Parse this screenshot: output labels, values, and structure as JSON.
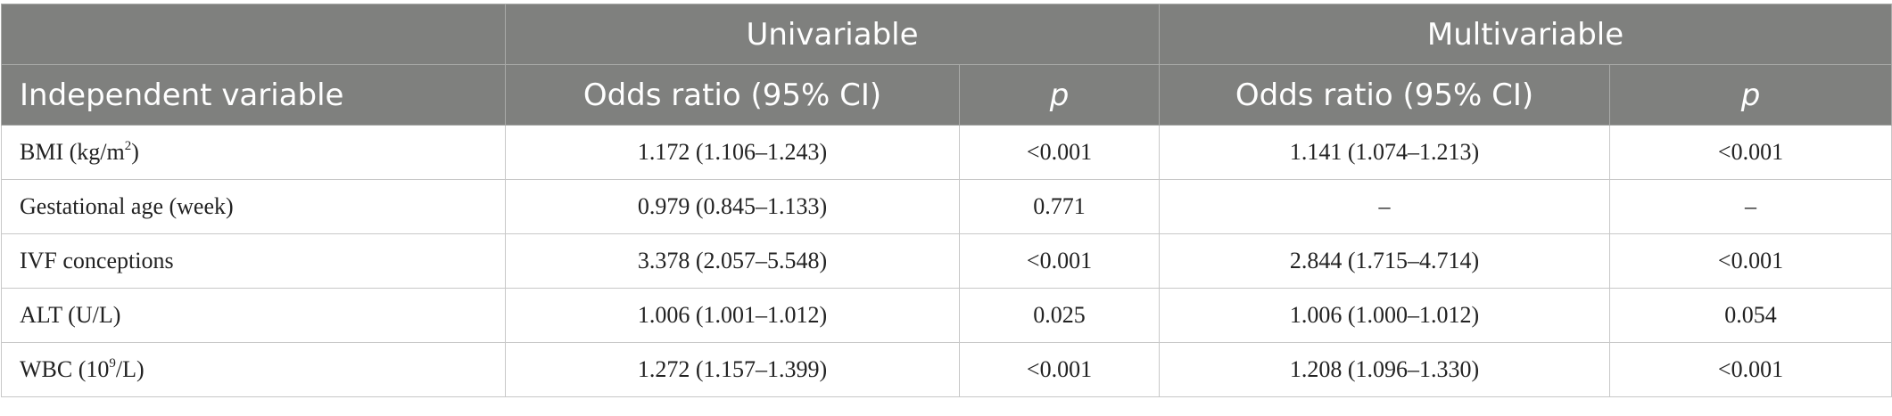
{
  "table": {
    "group_headers": {
      "univariable": "Univariable",
      "multivariable": "Multivariable"
    },
    "column_headers": {
      "variable": "Independent variable",
      "uni_or": "Odds ratio (95% CI)",
      "uni_p": "p",
      "multi_or": "Odds ratio (95% CI)",
      "multi_p": "p"
    },
    "rows": [
      {
        "var_base": "BMI (kg/m",
        "var_sup": "2",
        "var_tail": ")",
        "uni_or": "1.172 (1.106–1.243)",
        "uni_p": "<0.001",
        "multi_or": "1.141 (1.074–1.213)",
        "multi_p": "<0.001"
      },
      {
        "var_base": "Gestational age (week)",
        "var_sup": "",
        "var_tail": "",
        "uni_or": "0.979 (0.845–1.133)",
        "uni_p": "0.771",
        "multi_or": "–",
        "multi_p": "–"
      },
      {
        "var_base": "IVF conceptions",
        "var_sup": "",
        "var_tail": "",
        "uni_or": "3.378 (2.057–5.548)",
        "uni_p": "<0.001",
        "multi_or": "2.844 (1.715–4.714)",
        "multi_p": "<0.001"
      },
      {
        "var_base": "ALT (U/L)",
        "var_sup": "",
        "var_tail": "",
        "uni_or": "1.006 (1.001–1.012)",
        "uni_p": "0.025",
        "multi_or": "1.006 (1.000–1.012)",
        "multi_p": "0.054"
      },
      {
        "var_base": "WBC (10",
        "var_sup": "9",
        "var_tail": "/L)",
        "uni_or": "1.272 (1.157–1.399)",
        "uni_p": "<0.001",
        "multi_or": "1.208 (1.096–1.330)",
        "multi_p": "<0.001"
      }
    ]
  }
}
